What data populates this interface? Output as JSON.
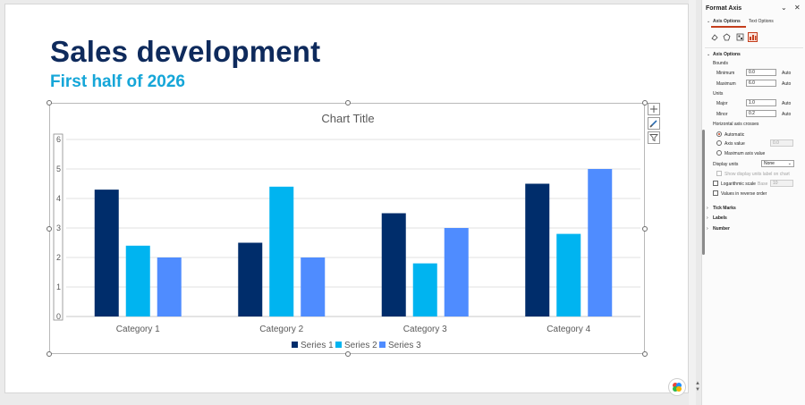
{
  "slide": {
    "title": "Sales development",
    "subtitle": "First half of 2026"
  },
  "colors": {
    "title": "#0e2a5c",
    "subtitle": "#15a6d8",
    "series1": "#002d6b",
    "series2": "#00b4f0",
    "series3": "#4f8cff"
  },
  "chart_data": {
    "type": "bar",
    "title": "Chart Title",
    "categories": [
      "Category 1",
      "Category 2",
      "Category 3",
      "Category 4"
    ],
    "series": [
      {
        "name": "Series 1",
        "values": [
          4.3,
          2.5,
          3.5,
          4.5
        ]
      },
      {
        "name": "Series 2",
        "values": [
          2.4,
          4.4,
          1.8,
          2.8
        ]
      },
      {
        "name": "Series 3",
        "values": [
          2.0,
          2.0,
          3.0,
          5.0
        ]
      }
    ],
    "ylim": [
      0,
      6
    ],
    "yticks": [
      "0",
      "1",
      "2",
      "3",
      "4",
      "5",
      "6"
    ],
    "grid": true,
    "legend": "bottom"
  },
  "chart_buttons": {
    "elements_icon": "plus-icon",
    "styles_icon": "brush-icon",
    "filter_icon": "filter-icon"
  },
  "pane": {
    "title": "Format Axis",
    "tabs": [
      "Axis Options",
      "Text Options"
    ],
    "section_axis_options": "Axis Options",
    "bounds_label": "Bounds",
    "minimum_label": "Minimum",
    "minimum_value": "0.0",
    "maximum_label": "Maximum",
    "maximum_value": "6.0",
    "units_label": "Units",
    "major_label": "Major",
    "major_value": "1.0",
    "minor_label": "Minor",
    "minor_value": "0.2",
    "auto_label": "Auto",
    "crosses_label": "Horizontal axis crosses",
    "automatic_label": "Automatic",
    "axis_value_label": "Axis value",
    "axis_value": "0.0",
    "max_axis_value_label": "Maximum axis value",
    "display_units_label": "Display units",
    "display_units_value": "None",
    "show_units_label": "Show display units label on chart",
    "log_scale_label": "Logarithmic scale",
    "base_label": "Base",
    "base_value": "10",
    "reverse_label": "Values in reverse order",
    "tick_marks": "Tick Marks",
    "labels": "Labels",
    "number": "Number"
  }
}
